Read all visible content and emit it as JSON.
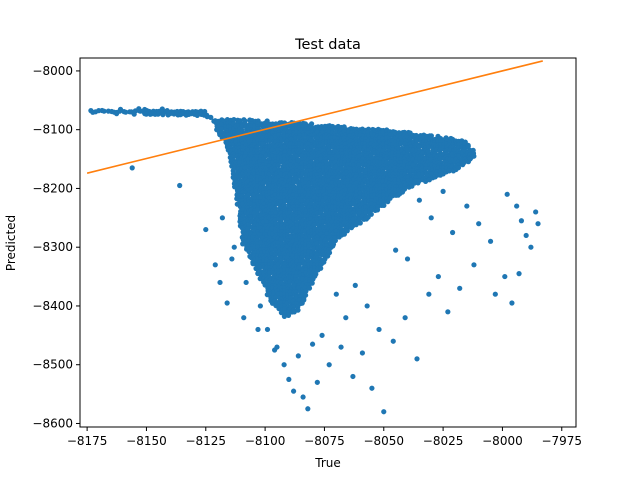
{
  "chart_data": {
    "type": "scatter",
    "title": "Test data",
    "xlabel": "True",
    "ylabel": "Predicted",
    "xlim": [
      -8178,
      -7969
    ],
    "ylim": [
      -8606,
      -7978
    ],
    "xticks": [
      -8175,
      -8150,
      -8125,
      -8100,
      -8075,
      -8050,
      -8025,
      -8000,
      -7975
    ],
    "yticks": [
      -8000,
      -8100,
      -8200,
      -8300,
      -8400,
      -8500,
      -8600
    ],
    "grid": false,
    "legend": "none",
    "colors": {
      "points": "#1f77b4",
      "fit_line": "#ff7f0e"
    },
    "fit_line": {
      "x": [
        -8175,
        -7983
      ],
      "y": [
        -8174,
        -7983
      ]
    },
    "points_outline": {
      "x": [
        -8175,
        -8150,
        -8125,
        -8115,
        -8112,
        -8110,
        -8104,
        -8098,
        -8092,
        -8086,
        -8080,
        -8070,
        -8060,
        -8050,
        -8040,
        -8030,
        -8020,
        -8010,
        -8015,
        -8030,
        -8050,
        -8080,
        -8110,
        -8140,
        -8175
      ],
      "y": [
        -8066,
        -8064,
        -8067,
        -8140,
        -8220,
        -8290,
        -8340,
        -8390,
        -8420,
        -8410,
        -8360,
        -8290,
        -8260,
        -8230,
        -8200,
        -8185,
        -8170,
        -8148,
        -8120,
        -8108,
        -8100,
        -8090,
        -8082,
        -8075,
        -8072
      ]
    },
    "points_extra": {
      "x": [
        -8114,
        -8108,
        -8102,
        -8099,
        -8095,
        -8092,
        -8090,
        -8088,
        -8084,
        -8082,
        -8078,
        -8073,
        -8068,
        -8063,
        -8059,
        -8055,
        -8050,
        -8046,
        -8041,
        -8036,
        -8031,
        -8027,
        -8023,
        -8018,
        -8012,
        -8005,
        -7998,
        -7994,
        -7992,
        -7990,
        -7988,
        -7986,
        -7985,
        -7993,
        -7996,
        -7999,
        -8003,
        -8010,
        -8015,
        -8021,
        -8025,
        -8030,
        -8035,
        -8040,
        -8045,
        -8052,
        -8057,
        -8062,
        -8066,
        -8070,
        -8076,
        -8080,
        -8086,
        -8096,
        -8103,
        -8109,
        -8116,
        -8119,
        -8121,
        -8125,
        -8136,
        -8156,
        -8118,
        -8113
      ],
      "y": [
        -8320,
        -8360,
        -8400,
        -8440,
        -8470,
        -8500,
        -8525,
        -8545,
        -8555,
        -8575,
        -8530,
        -8500,
        -8470,
        -8520,
        -8480,
        -8540,
        -8580,
        -8460,
        -8420,
        -8490,
        -8380,
        -8350,
        -8410,
        -8370,
        -8330,
        -8290,
        -8210,
        -8230,
        -8255,
        -8280,
        -8300,
        -8240,
        -8260,
        -8345,
        -8395,
        -8350,
        -8380,
        -8260,
        -8230,
        -8275,
        -8205,
        -8250,
        -8220,
        -8320,
        -8305,
        -8440,
        -8400,
        -8365,
        -8420,
        -8380,
        -8450,
        -8465,
        -8485,
        -8475,
        -8440,
        -8420,
        -8395,
        -8360,
        -8330,
        -8270,
        -8195,
        -8165,
        -8250,
        -8300
      ]
    }
  }
}
